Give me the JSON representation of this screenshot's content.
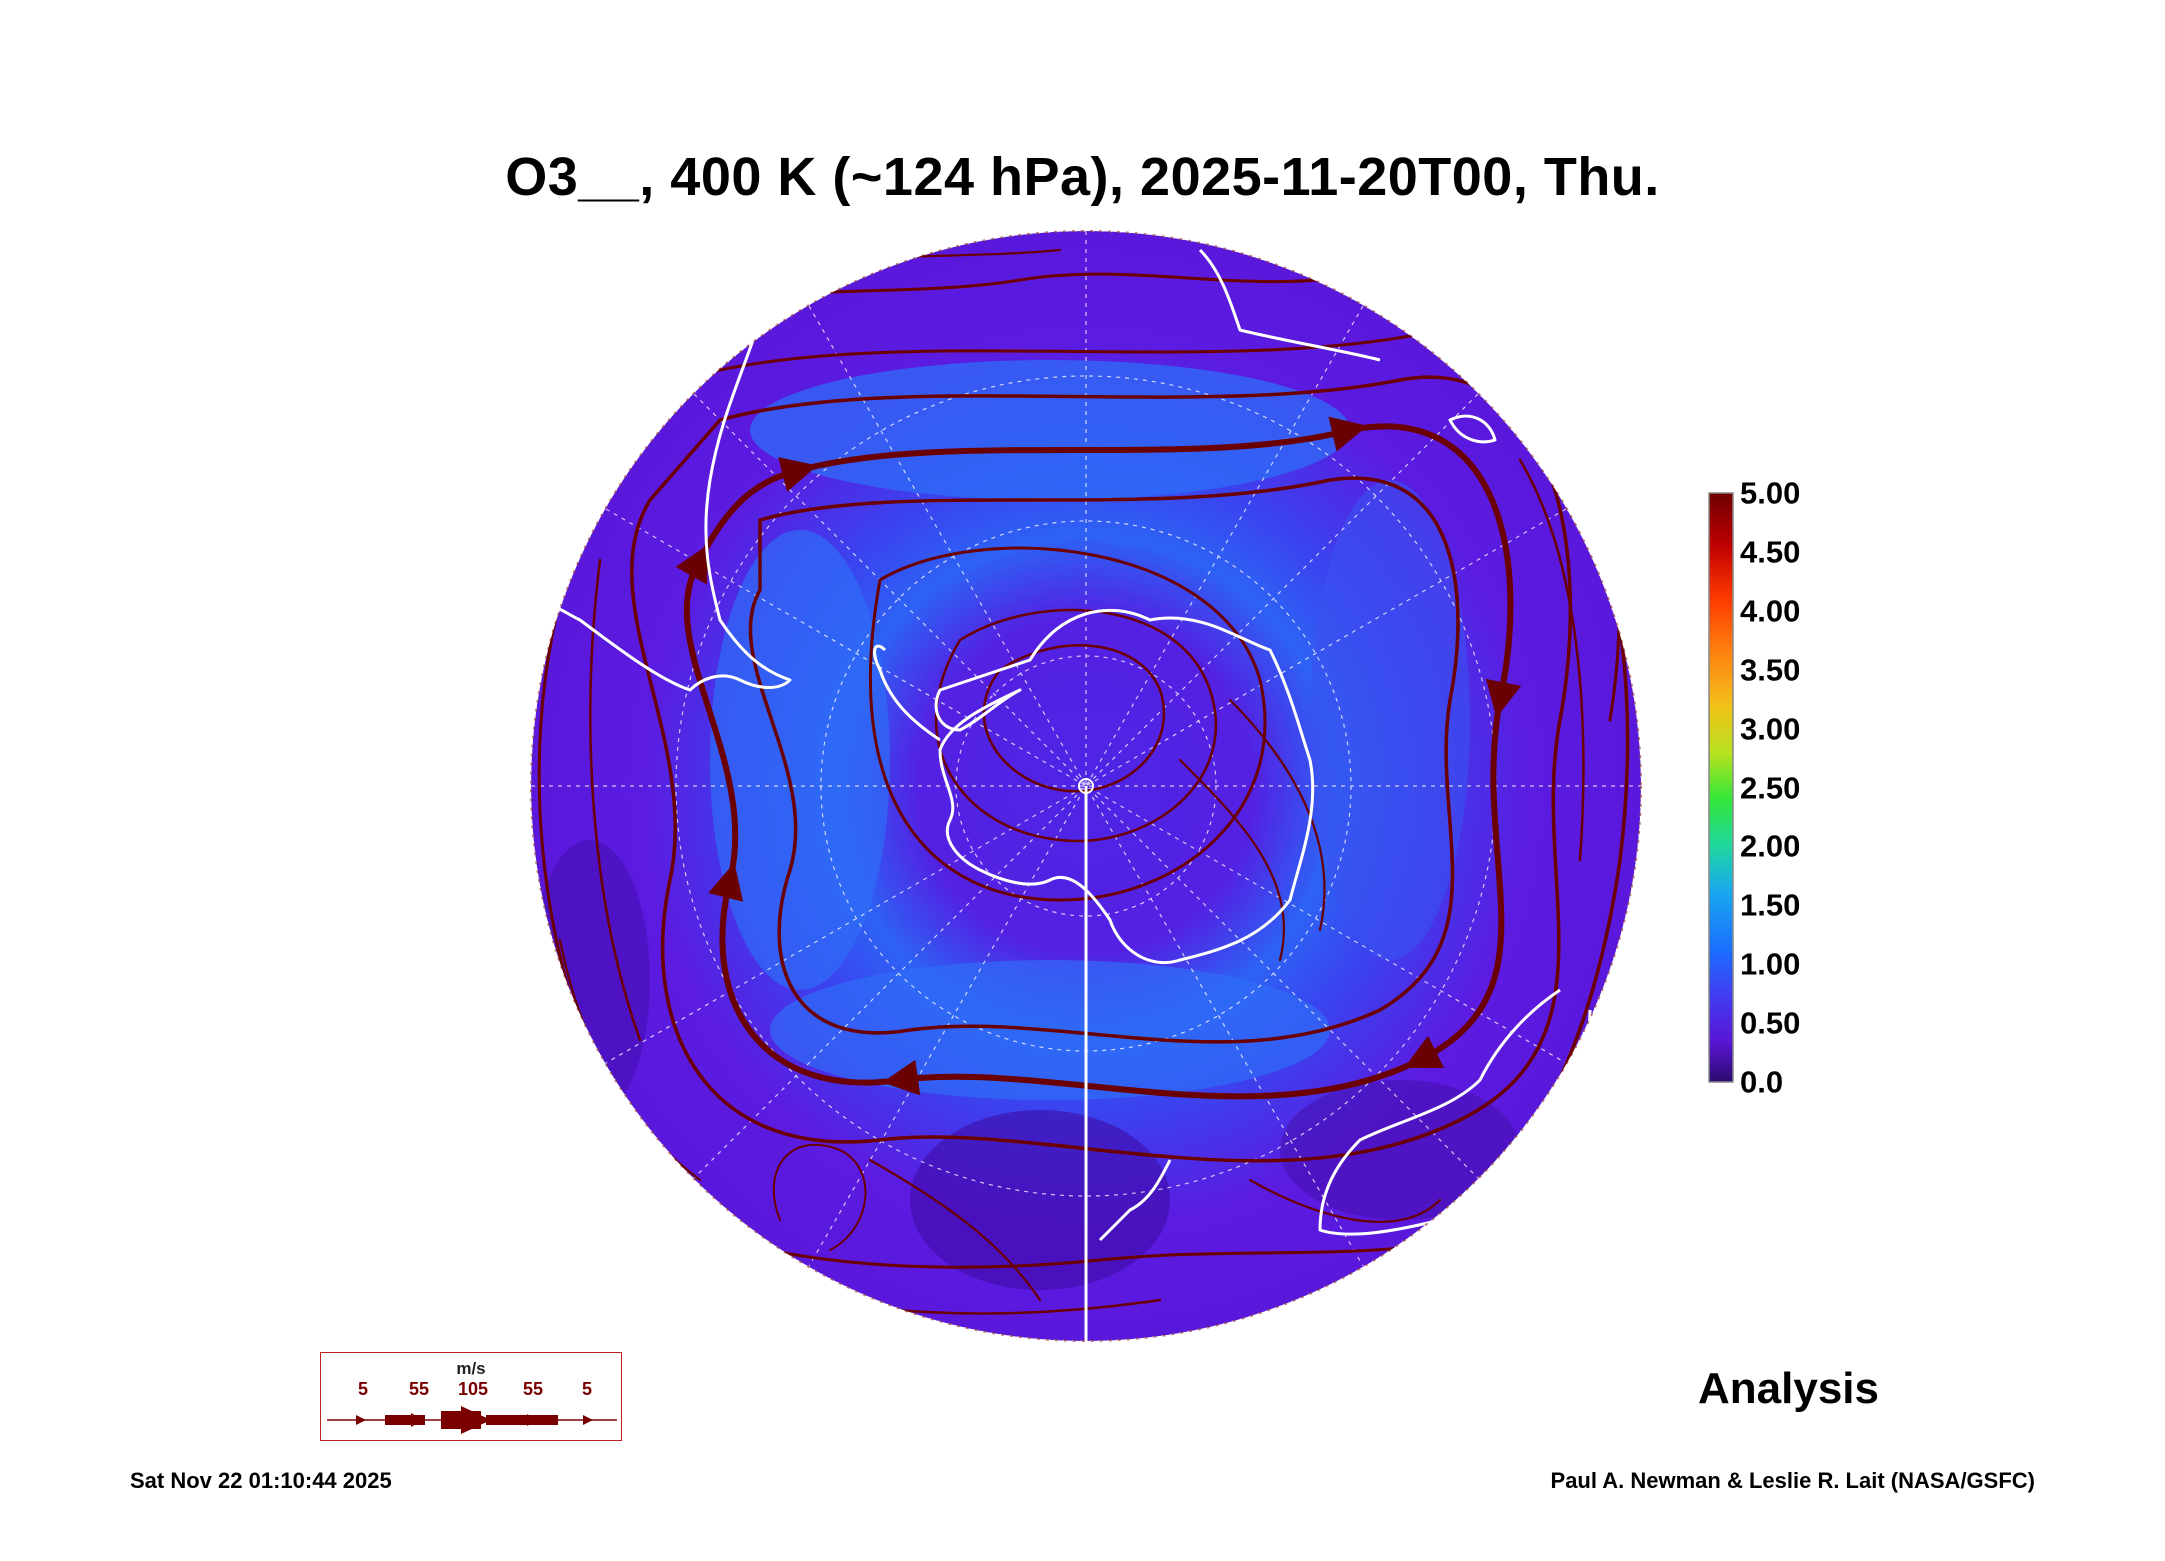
{
  "title": "O3__, 400 K (~124 hPa), 2025-11-20T00, Thu.",
  "colorbar": {
    "ticks": [
      "5.00",
      "4.50",
      "4.00",
      "3.50",
      "3.00",
      "2.50",
      "2.00",
      "1.50",
      "1.00",
      "0.50",
      "0.0"
    ],
    "range": [
      0,
      5
    ],
    "colors": [
      "#2a0a6e",
      "#5a16d6",
      "#3f3ff2",
      "#1c6cff",
      "#19a6f0",
      "#1fd7a0",
      "#34e63a",
      "#b8e21e",
      "#f2c019",
      "#ff7a10",
      "#ff3a00",
      "#c00000",
      "#6e0000"
    ]
  },
  "map": {
    "projection": "south polar stereographic",
    "field_colors": {
      "background_low": "#5b1be0",
      "mid": "#3a48f0",
      "high": "#1e78ff",
      "very_low": "#3c0a9e"
    },
    "coastline_color": "#ffffff",
    "streamline_color": "#6b0000",
    "grid_color": "#ffffff"
  },
  "wind_legend": {
    "unit": "m/s",
    "speeds": [
      "5",
      "55",
      "105",
      "55",
      "5"
    ]
  },
  "analysis_label": "Analysis",
  "timestamp": "Sat Nov 22 01:10:44 2025",
  "credit": "Paul A. Newman & Leslie R. Lait (NASA/GSFC)"
}
